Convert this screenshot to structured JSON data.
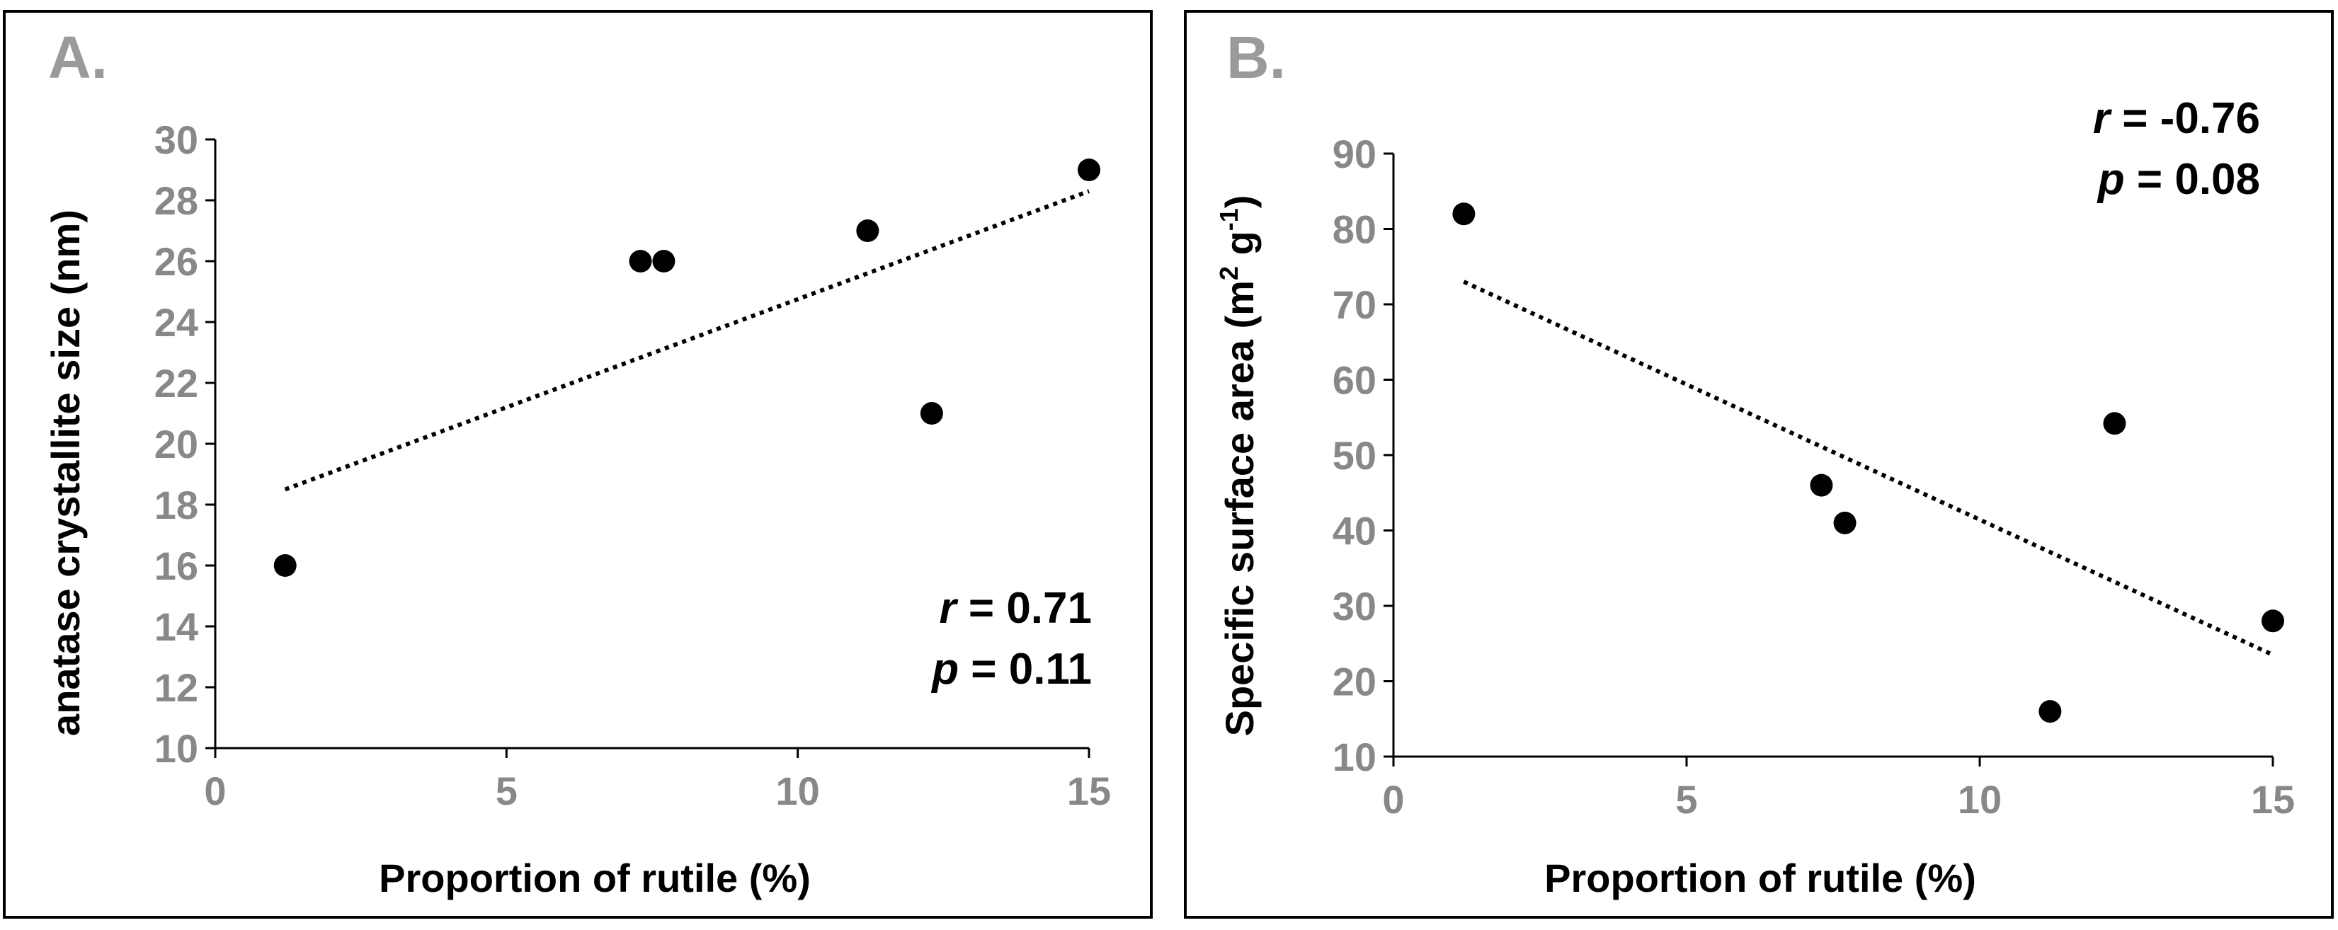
{
  "chart_data": [
    {
      "type": "scatter",
      "panel_label": "A.",
      "xlabel": "Proportion of rutile (%)",
      "ylabel": "anatase  crystallite size (nm)",
      "xlim": [
        0,
        15
      ],
      "ylim": [
        10,
        30
      ],
      "xticks": [
        0,
        5,
        10,
        15
      ],
      "yticks": [
        10,
        12,
        14,
        16,
        18,
        20,
        22,
        24,
        26,
        28,
        30
      ],
      "points": [
        {
          "x": 1.2,
          "y": 16
        },
        {
          "x": 7.3,
          "y": 26
        },
        {
          "x": 7.7,
          "y": 26
        },
        {
          "x": 11.2,
          "y": 27
        },
        {
          "x": 12.3,
          "y": 21
        },
        {
          "x": 15.0,
          "y": 29
        }
      ],
      "trendline": {
        "style": "dotted",
        "x": [
          1.2,
          15.0
        ],
        "y": [
          18.5,
          28.3
        ]
      },
      "stats": {
        "r_symbol": "r",
        "r_value": " = 0.71",
        "p_symbol": "p",
        "p_value": " = 0.11",
        "placement": "bottom-right"
      },
      "grid": false,
      "legend": "none"
    },
    {
      "type": "scatter",
      "panel_label": "B.",
      "xlabel": "Proportion of rutile (%)",
      "ylabel_main": "Specific surface area (m",
      "ylabel_sup1": "2",
      "ylabel_mid": " g",
      "ylabel_sup2": "-1",
      "ylabel_end": ")",
      "xlim": [
        0,
        15
      ],
      "ylim": [
        10,
        90
      ],
      "xticks": [
        0,
        5,
        10,
        15
      ],
      "yticks": [
        10,
        20,
        30,
        40,
        50,
        60,
        70,
        80,
        90
      ],
      "points": [
        {
          "x": 1.2,
          "y": 82
        },
        {
          "x": 7.3,
          "y": 46
        },
        {
          "x": 7.7,
          "y": 41
        },
        {
          "x": 11.2,
          "y": 16
        },
        {
          "x": 12.3,
          "y": 54.2
        },
        {
          "x": 15.0,
          "y": 28
        }
      ],
      "trendline": {
        "style": "dotted",
        "x": [
          1.2,
          15.0
        ],
        "y": [
          73,
          23.5
        ]
      },
      "stats": {
        "r_symbol": "r",
        "r_value": " = -0.76",
        "p_symbol": "p",
        "p_value": " = 0.08",
        "placement": "top-right"
      },
      "grid": false,
      "legend": "none"
    }
  ]
}
